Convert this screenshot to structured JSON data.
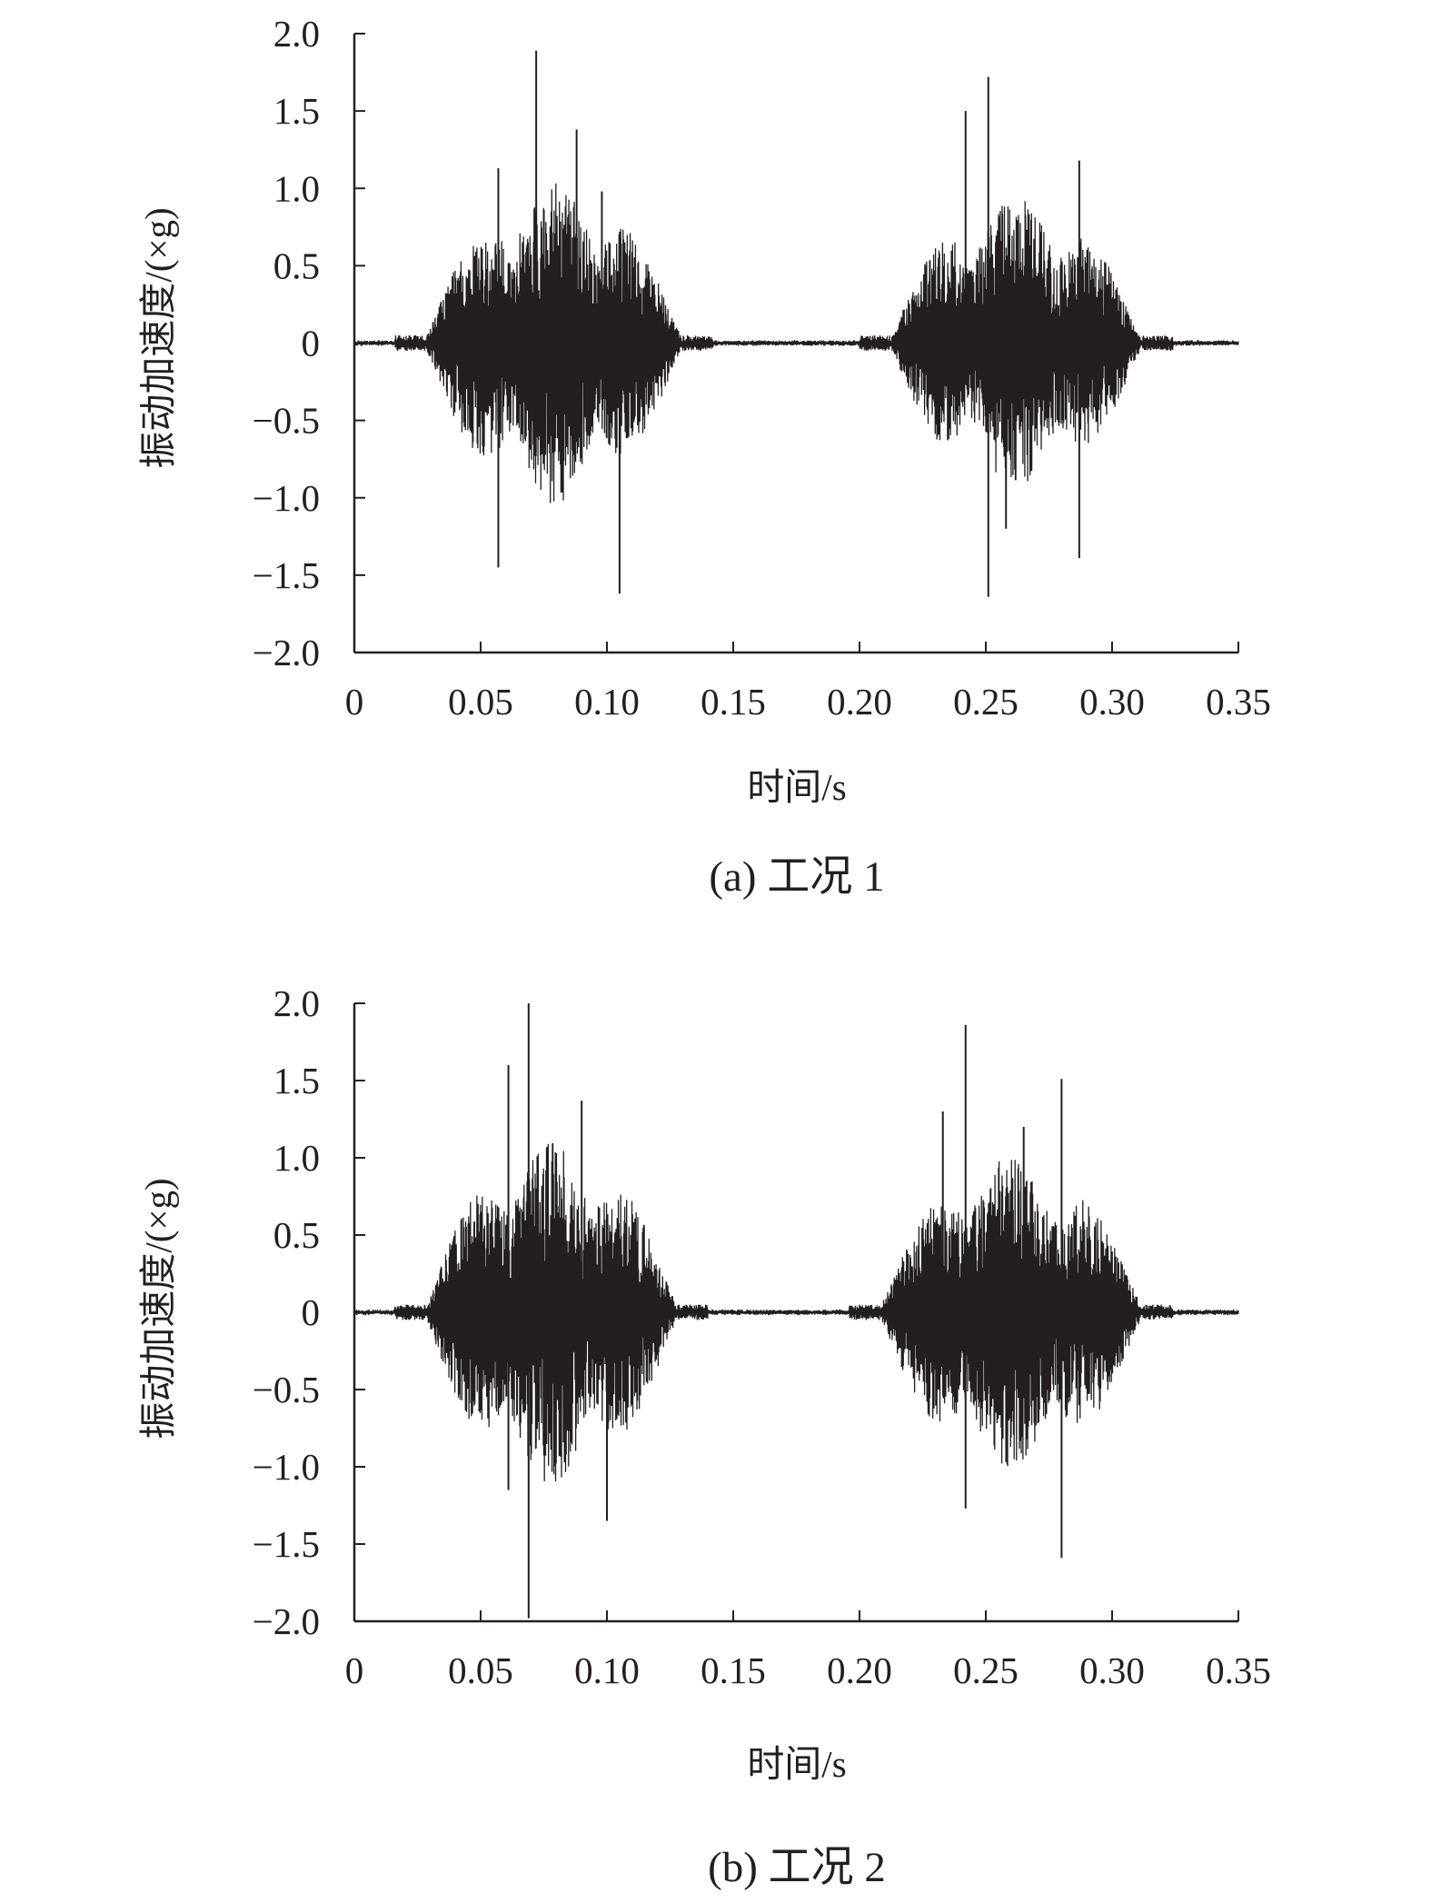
{
  "colors": {
    "signal": "#231f20",
    "axis": "#231f20",
    "background": "#ffffff"
  },
  "chart_data": [
    {
      "type": "line",
      "caption": "(a) 工况 1",
      "xlabel": "时间/s",
      "ylabel": "振动加速度/(×g)",
      "xlim": [
        0,
        0.35
      ],
      "ylim": [
        -2.0,
        2.0
      ],
      "x_ticks": [
        "0",
        "0.05",
        "0.10",
        "0.15",
        "0.20",
        "0.25",
        "0.30",
        "0.35"
      ],
      "y_ticks": [
        "2.0",
        "1.5",
        "1.0",
        "0.5",
        "0",
        "−0.5",
        "−1.0",
        "−1.5",
        "−2.0"
      ],
      "grid": false,
      "series": [
        {
          "description_of_signal": "two vibration bursts separated by quiet segments",
          "bursts": [
            {
              "t_start": 0.028,
              "t_end": 0.13,
              "peak_max": 1.89,
              "peak_min": -1.62,
              "spikes": [
                [
                  0.057,
                  1.13
                ],
                [
                  0.057,
                  -1.45
                ],
                [
                  0.072,
                  1.89
                ],
                [
                  0.088,
                  1.38
                ],
                [
                  0.105,
                  -1.62
                ],
                [
                  0.098,
                  0.98
                ]
              ]
            },
            {
              "t_start": 0.212,
              "t_end": 0.312,
              "peak_max": 1.72,
              "peak_min": -1.64,
              "spikes": [
                [
                  0.242,
                  1.5
                ],
                [
                  0.251,
                  1.72
                ],
                [
                  0.251,
                  -1.64
                ],
                [
                  0.287,
                  1.18
                ],
                [
                  0.287,
                  -1.39
                ],
                [
                  0.258,
                  -1.2
                ]
              ]
            }
          ]
        }
      ]
    },
    {
      "type": "line",
      "caption": "(b) 工况 2",
      "xlabel": "时间/s",
      "ylabel": "振动加速度/(×g)",
      "xlim": [
        0,
        0.35
      ],
      "ylim": [
        -2.0,
        2.0
      ],
      "x_ticks": [
        "0",
        "0.05",
        "0.10",
        "0.15",
        "0.20",
        "0.25",
        "0.30",
        "0.35"
      ],
      "y_ticks": [
        "2.0",
        "1.5",
        "1.0",
        "0.5",
        "0",
        "−0.5",
        "−1.0",
        "−1.5",
        "−2.0"
      ],
      "grid": false,
      "series": [
        {
          "description_of_signal": "two vibration bursts separated by quiet segments",
          "bursts": [
            {
              "t_start": 0.028,
              "t_end": 0.128,
              "peak_max": 2.0,
              "peak_min": -1.98,
              "spikes": [
                [
                  0.061,
                  1.6
                ],
                [
                  0.069,
                  2.0
                ],
                [
                  0.069,
                  -1.98
                ],
                [
                  0.1,
                  -1.35
                ],
                [
                  0.061,
                  -1.15
                ],
                [
                  0.09,
                  1.37
                ]
              ]
            },
            {
              "t_start": 0.208,
              "t_end": 0.312,
              "peak_max": 1.86,
              "peak_min": -1.59,
              "spikes": [
                [
                  0.242,
                  1.86
                ],
                [
                  0.28,
                  1.51
                ],
                [
                  0.28,
                  -1.59
                ],
                [
                  0.242,
                  -1.27
                ],
                [
                  0.233,
                  1.3
                ],
                [
                  0.265,
                  1.2
                ]
              ]
            }
          ]
        }
      ]
    }
  ]
}
